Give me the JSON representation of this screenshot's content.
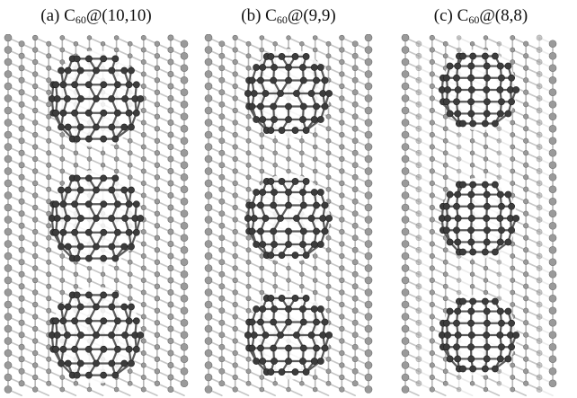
{
  "figure": {
    "panels": [
      {
        "label": "(a)",
        "molecule": "C",
        "subscript": "60",
        "tube": "@(10,10)",
        "chirality": [
          10,
          10
        ],
        "fullerenes": 3
      },
      {
        "label": "(b)",
        "molecule": "C",
        "subscript": "60",
        "tube": "@(9,9)",
        "chirality": [
          9,
          9
        ],
        "fullerenes": 3
      },
      {
        "label": "(c)",
        "molecule": "C",
        "subscript": "60",
        "tube": "@(8,8)",
        "chirality": [
          8,
          8
        ],
        "fullerenes": 3
      }
    ],
    "colors": {
      "tube_atom": "#9a9a9a",
      "tube_bond": "#b8b8b8",
      "fullerene_atom": "#3c3c3c",
      "fullerene_bond": "#5a5a5a",
      "background": "#ffffff"
    }
  }
}
